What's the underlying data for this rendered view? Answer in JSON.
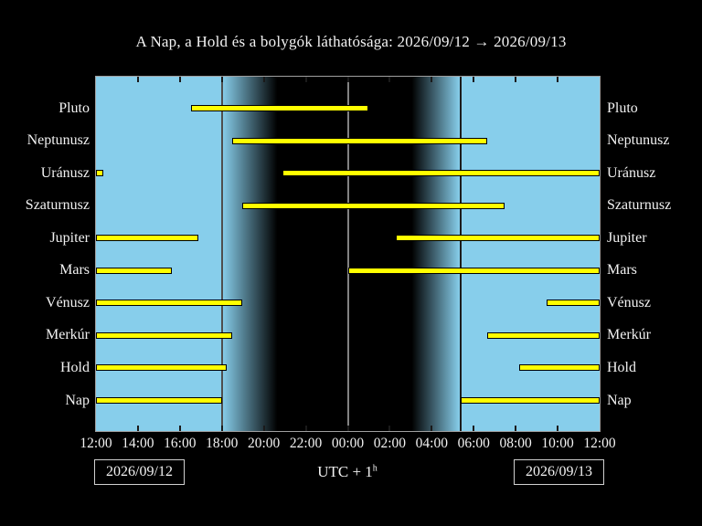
{
  "title": "A Nap, a Hold és a bolygók láthatósága: 2026/09/12 → 2026/09/13",
  "footer": {
    "left_date": "2026/09/12",
    "right_date": "2026/09/13",
    "timezone_base": "UTC + 1",
    "timezone_sup": "h"
  },
  "colors": {
    "background": "#000000",
    "day": "#87ceeb",
    "night": "#000000",
    "bar_fill": "#ffff00",
    "bar_outline": "#000000",
    "text": "#f2f2f2",
    "sunset_line": "#4f4f4f",
    "midnight_line": "#828282",
    "sunrise_line": "#1c1c1c",
    "frame": "#9f9f9f"
  },
  "chart_data": {
    "type": "bar",
    "subtype": "horizontal-visibility-intervals",
    "title": "A Nap, a Hold és a bolygók láthatósága: 2026/09/12 → 2026/09/13",
    "xlabel": "UTC + 1h",
    "x_axis": {
      "span_hours": 24,
      "start_label": "12:00",
      "end_label": "12:00",
      "tick_interval_hours": 2,
      "tick_labels": [
        "12:00",
        "14:00",
        "16:00",
        "18:00",
        "20:00",
        "22:00",
        "00:00",
        "02:00",
        "04:00",
        "06:00",
        "08:00",
        "10:00",
        "12:00"
      ]
    },
    "rows": [
      {
        "label": "Pluto",
        "segments": [
          {
            "start": "16:32",
            "end": "00:58",
            "start_h": 4.54,
            "end_h": 12.96
          }
        ]
      },
      {
        "label": "Neptunusz",
        "segments": [
          {
            "start": "18:30",
            "end": "06:40",
            "start_h": 6.5,
            "end_h": 18.66
          }
        ]
      },
      {
        "label": "Uránusz",
        "segments": [
          {
            "start": "12:00",
            "end": "12:22",
            "start_h": 0.0,
            "end_h": 0.37
          },
          {
            "start": "20:52",
            "end": "12:00",
            "start_h": 8.87,
            "end_h": 24.0
          }
        ]
      },
      {
        "label": "Szaturnusz",
        "segments": [
          {
            "start": "18:57",
            "end": "07:29",
            "start_h": 6.95,
            "end_h": 19.49
          }
        ]
      },
      {
        "label": "Jupiter",
        "segments": [
          {
            "start": "12:00",
            "end": "16:52",
            "start_h": 0.0,
            "end_h": 4.87
          },
          {
            "start": "02:18",
            "end": "12:00",
            "start_h": 14.3,
            "end_h": 24.0
          }
        ]
      },
      {
        "label": "Mars",
        "segments": [
          {
            "start": "12:00",
            "end": "15:38",
            "start_h": 0.0,
            "end_h": 3.63
          },
          {
            "start": "00:00",
            "end": "12:00",
            "start_h": 12.0,
            "end_h": 24.0
          }
        ]
      },
      {
        "label": "Vénusz",
        "segments": [
          {
            "start": "12:00",
            "end": "18:57",
            "start_h": 0.0,
            "end_h": 6.95
          },
          {
            "start": "09:27",
            "end": "12:00",
            "start_h": 21.46,
            "end_h": 24.0
          }
        ]
      },
      {
        "label": "Merkúr",
        "segments": [
          {
            "start": "12:00",
            "end": "18:31",
            "start_h": 0.0,
            "end_h": 6.51
          },
          {
            "start": "06:40",
            "end": "12:00",
            "start_h": 18.66,
            "end_h": 24.0
          }
        ]
      },
      {
        "label": "Hold",
        "segments": [
          {
            "start": "12:00",
            "end": "18:14",
            "start_h": 0.0,
            "end_h": 6.23
          },
          {
            "start": "08:09",
            "end": "12:00",
            "start_h": 20.15,
            "end_h": 24.0
          }
        ]
      },
      {
        "label": "Nap",
        "segments": [
          {
            "start": "12:00",
            "end": "18:00",
            "start_h": 0.0,
            "end_h": 6.01
          },
          {
            "start": "05:23",
            "end": "12:00",
            "start_h": 17.38,
            "end_h": 24.0
          }
        ]
      }
    ],
    "background_bands": {
      "day_until_h": 6.02,
      "evening_twilight": [
        6.02,
        8.64
      ],
      "night": [
        8.64,
        15.05
      ],
      "morning_twilight": [
        15.05,
        17.33
      ],
      "day_from_h": 17.33,
      "sunset_line_h": 6.02,
      "midnight_line_h": 12.03,
      "sunrise_line_h": 17.38
    },
    "legend": "none",
    "grid": "off"
  }
}
